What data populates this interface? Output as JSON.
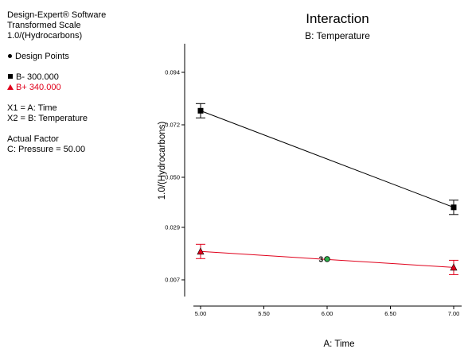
{
  "info": {
    "software": "Design-Expert® Software",
    "transformed_scale": "Transformed Scale",
    "transform": "1.0/(Hydrocarbons)",
    "design_points": "Design Points",
    "b_minus": "B- 300.000",
    "b_plus": "B+ 340.000",
    "x1": "X1 = A: Time",
    "x2": "X2 = B: Temperature",
    "actual_factor": "Actual Factor",
    "pressure": "C: Pressure = 50.00"
  },
  "chart_data": {
    "type": "line",
    "title": "Interaction",
    "subtitle": "B: Temperature",
    "xlabel": "A: Time",
    "ylabel": "1.0/(Hydrocarbons)",
    "xlim": [
      5.0,
      7.0
    ],
    "ylim": [
      0.0,
      0.1005
    ],
    "x_ticks": [
      "5.00",
      "5.50",
      "6.00",
      "6.50",
      "7.00"
    ],
    "y_ticks": [
      "0.007",
      "0.029",
      "0.050",
      "0.072",
      "0.094"
    ],
    "y_tick_values": [
      0.007,
      0.029,
      0.05,
      0.072,
      0.094
    ],
    "series": [
      {
        "name": "B- 300.000",
        "color": "#000000",
        "marker": "square",
        "x": [
          5.0,
          7.0
        ],
        "y": [
          0.0779,
          0.0374
        ],
        "err": [
          0.003,
          0.003
        ]
      },
      {
        "name": "B+ 340.000",
        "color": "#e0001b",
        "marker": "triangle",
        "x": [
          5.0,
          7.0
        ],
        "y": [
          0.0189,
          0.0122
        ],
        "err": [
          0.003,
          0.003
        ]
      }
    ],
    "points": [
      {
        "x": 6.0,
        "y": 0.0157,
        "label": "3",
        "color": "#2db34a"
      }
    ],
    "grid": false
  }
}
